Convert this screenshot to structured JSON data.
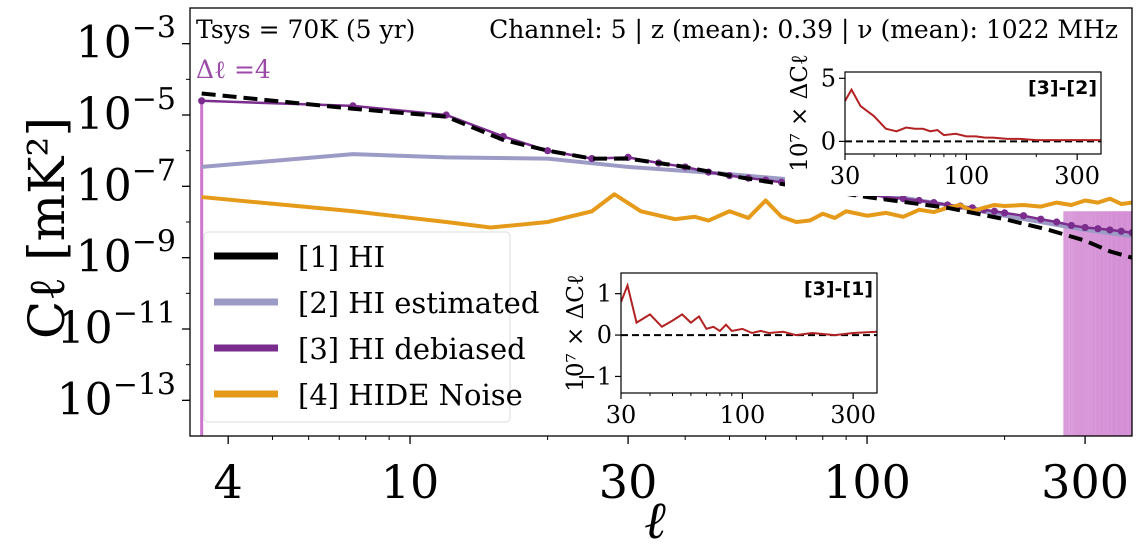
{
  "chart_data": [
    {
      "type": "line",
      "header": {
        "left": "Tsys = 70K (5 yr)",
        "right": "Channel: 5 |   z (mean): 0.39 | ν (mean): 1022 MHz",
        "delta": "Δℓ =4"
      },
      "xlabel": "ℓ",
      "ylabel": "Cℓ [mK²]",
      "xscale": "log",
      "yscale": "log",
      "xlim": [
        3.3,
        380
      ],
      "ylim": [
        1e-14,
        0.01
      ],
      "xticks": [
        4,
        10,
        30,
        100,
        300
      ],
      "xtick_labels": [
        "4",
        "10",
        "30",
        "100",
        "300"
      ],
      "yticks": [
        0.001,
        1e-05,
        1e-07,
        1e-09,
        1e-11,
        1e-13
      ],
      "ytick_labels": [
        {
          "base": "10",
          "exp": "−3"
        },
        {
          "base": "10",
          "exp": "−5"
        },
        {
          "base": "10",
          "exp": "−7"
        },
        {
          "base": "10",
          "exp": "−9"
        },
        {
          "base": "10",
          "exp": "−11"
        },
        {
          "base": "10",
          "exp": "−13"
        }
      ],
      "legend": {
        "placement": "lower-left",
        "entries": [
          {
            "label": "[1] HI",
            "color": "#000000"
          },
          {
            "label": "[2] HI estimated",
            "color": "#9b9bc6"
          },
          {
            "label": "[3] HI debiased",
            "color": "#7b2d8e"
          },
          {
            "label": "[4] HIDE Noise",
            "color": "#e69a1a"
          }
        ]
      },
      "series": [
        {
          "name": "[1] HI",
          "color": "#000000",
          "style": "dashed",
          "x": [
            3.5,
            7.5,
            12,
            16,
            20,
            25,
            30,
            40,
            50,
            70,
            100,
            150,
            200,
            250,
            300,
            340,
            380
          ],
          "y": [
            4e-05,
            1.5e-05,
            9e-06,
            2e-06,
            1e-06,
            6e-07,
            6e-07,
            3.5e-07,
            2e-07,
            1e-07,
            5e-08,
            2.5e-08,
            1.2e-08,
            6e-09,
            3e-09,
            1.5e-09,
            1e-09
          ]
        },
        {
          "name": "[2] HI estimated",
          "color": "#9b9bc6",
          "style": "solid",
          "x": [
            3.5,
            7.5,
            12,
            20,
            30,
            50,
            70,
            100,
            150,
            200,
            300,
            380
          ],
          "y": [
            3.5e-07,
            8e-07,
            6.5e-07,
            6e-07,
            3.5e-07,
            2.2e-07,
            1.5e-07,
            7e-08,
            3e-08,
            1.5e-08,
            6e-09,
            4e-09
          ]
        },
        {
          "name": "[3] HI debiased",
          "color": "#7b2d8e",
          "style": "markers",
          "x": [
            3.5,
            7.5,
            12,
            16,
            20,
            25,
            30,
            35,
            40,
            45,
            50,
            55,
            60,
            65,
            70,
            75,
            80,
            85,
            90,
            95,
            100,
            110,
            120,
            130,
            140,
            150,
            160,
            170,
            180,
            190,
            200,
            220,
            240,
            260,
            280,
            300,
            320,
            340,
            360,
            380
          ],
          "y": [
            2.5e-05,
            1.8e-05,
            1e-05,
            2.5e-06,
            1e-06,
            6e-07,
            6.5e-07,
            4.5e-07,
            3.5e-07,
            2.5e-07,
            2e-07,
            1.7e-07,
            1.5e-07,
            1.3e-07,
            1.1e-07,
            1e-07,
            9e-08,
            8e-08,
            7e-08,
            6.5e-08,
            6e-08,
            5e-08,
            4.5e-08,
            4e-08,
            3.5e-08,
            3e-08,
            2.8e-08,
            2.5e-08,
            2.2e-08,
            2e-08,
            1.8e-08,
            1.5e-08,
            1.2e-08,
            1e-08,
            8e-09,
            7e-09,
            6.5e-09,
            6e-09,
            5.5e-09,
            5e-09
          ]
        },
        {
          "name": "[4] HIDE Noise",
          "color": "#e69a1a",
          "style": "solid",
          "x": [
            3.5,
            7.5,
            12,
            15,
            20,
            25,
            28,
            32,
            38,
            42,
            45,
            50,
            55,
            60,
            65,
            70,
            75,
            80,
            85,
            90,
            100,
            110,
            120,
            130,
            140,
            150,
            160,
            170,
            180,
            190,
            200,
            220,
            240,
            260,
            280,
            300,
            320,
            340,
            360,
            380
          ],
          "y": [
            5e-08,
            2e-08,
            1e-08,
            7e-09,
            1e-08,
            2e-08,
            6e-08,
            2e-08,
            1.2e-08,
            1.4e-08,
            1.1e-08,
            2e-08,
            1.3e-08,
            4e-08,
            1.4e-08,
            1e-08,
            1.1e-08,
            1.7e-08,
            1.3e-08,
            2e-08,
            1.5e-08,
            1.8e-08,
            1.4e-08,
            2.2e-08,
            1.9e-08,
            2.5e-08,
            3e-08,
            2e-08,
            2.5e-08,
            3e-08,
            2.8e-08,
            3e-08,
            2.7e-08,
            3.5e-08,
            3e-08,
            4e-08,
            3.5e-08,
            4.5e-08,
            3.2e-08,
            3.5e-08
          ]
        }
      ],
      "error_band": {
        "name": "[3] HI debiased",
        "color": "#cc77cc",
        "x_start": 270,
        "x_end": 380
      }
    },
    {
      "type": "line",
      "label": "[3]-[2]",
      "ylabel": "10⁷ × ΔCℓ",
      "xscale": "log",
      "xlim": [
        30,
        380
      ],
      "ylim": [
        -1,
        5.5
      ],
      "xticks": [
        30,
        100,
        300
      ],
      "xtick_labels": [
        "30",
        "100",
        "300"
      ],
      "yticks": [
        0,
        5
      ],
      "ytick_labels": [
        "0",
        "5"
      ],
      "series": [
        {
          "color": "#b22222",
          "x": [
            30,
            32,
            35,
            40,
            45,
            50,
            55,
            60,
            65,
            70,
            75,
            80,
            90,
            100,
            110,
            120,
            130,
            150,
            170,
            200,
            250,
            300,
            380
          ],
          "y": [
            3.2,
            4.1,
            2.8,
            2.0,
            1.0,
            0.8,
            1.1,
            1.0,
            1.0,
            0.8,
            0.9,
            0.5,
            0.6,
            0.4,
            0.4,
            0.3,
            0.3,
            0.2,
            0.2,
            0.1,
            0.1,
            0.1,
            0.1
          ]
        }
      ],
      "reference_line": 0
    },
    {
      "type": "line",
      "label": "[3]-[1]",
      "ylabel": "10⁷ × ΔCℓ",
      "xscale": "log",
      "xlim": [
        30,
        380
      ],
      "ylim": [
        -1.4,
        1.5
      ],
      "xticks": [
        30,
        100,
        300
      ],
      "xtick_labels": [
        "30",
        "100",
        "300"
      ],
      "yticks": [
        -1,
        0,
        1
      ],
      "ytick_labels": [
        "−1",
        "0",
        "1"
      ],
      "series": [
        {
          "color": "#b22222",
          "x": [
            30,
            32,
            35,
            40,
            45,
            50,
            55,
            60,
            65,
            70,
            75,
            80,
            85,
            90,
            100,
            110,
            120,
            130,
            150,
            170,
            200,
            250,
            300,
            380
          ],
          "y": [
            0.8,
            1.2,
            0.3,
            0.5,
            0.2,
            0.35,
            0.5,
            0.3,
            0.45,
            0.15,
            0.2,
            0.1,
            0.25,
            0.1,
            0.15,
            0.05,
            0.1,
            0.05,
            0.08,
            0.0,
            0.05,
            0.0,
            0.05,
            0.08
          ]
        }
      ],
      "reference_line": 0
    }
  ]
}
